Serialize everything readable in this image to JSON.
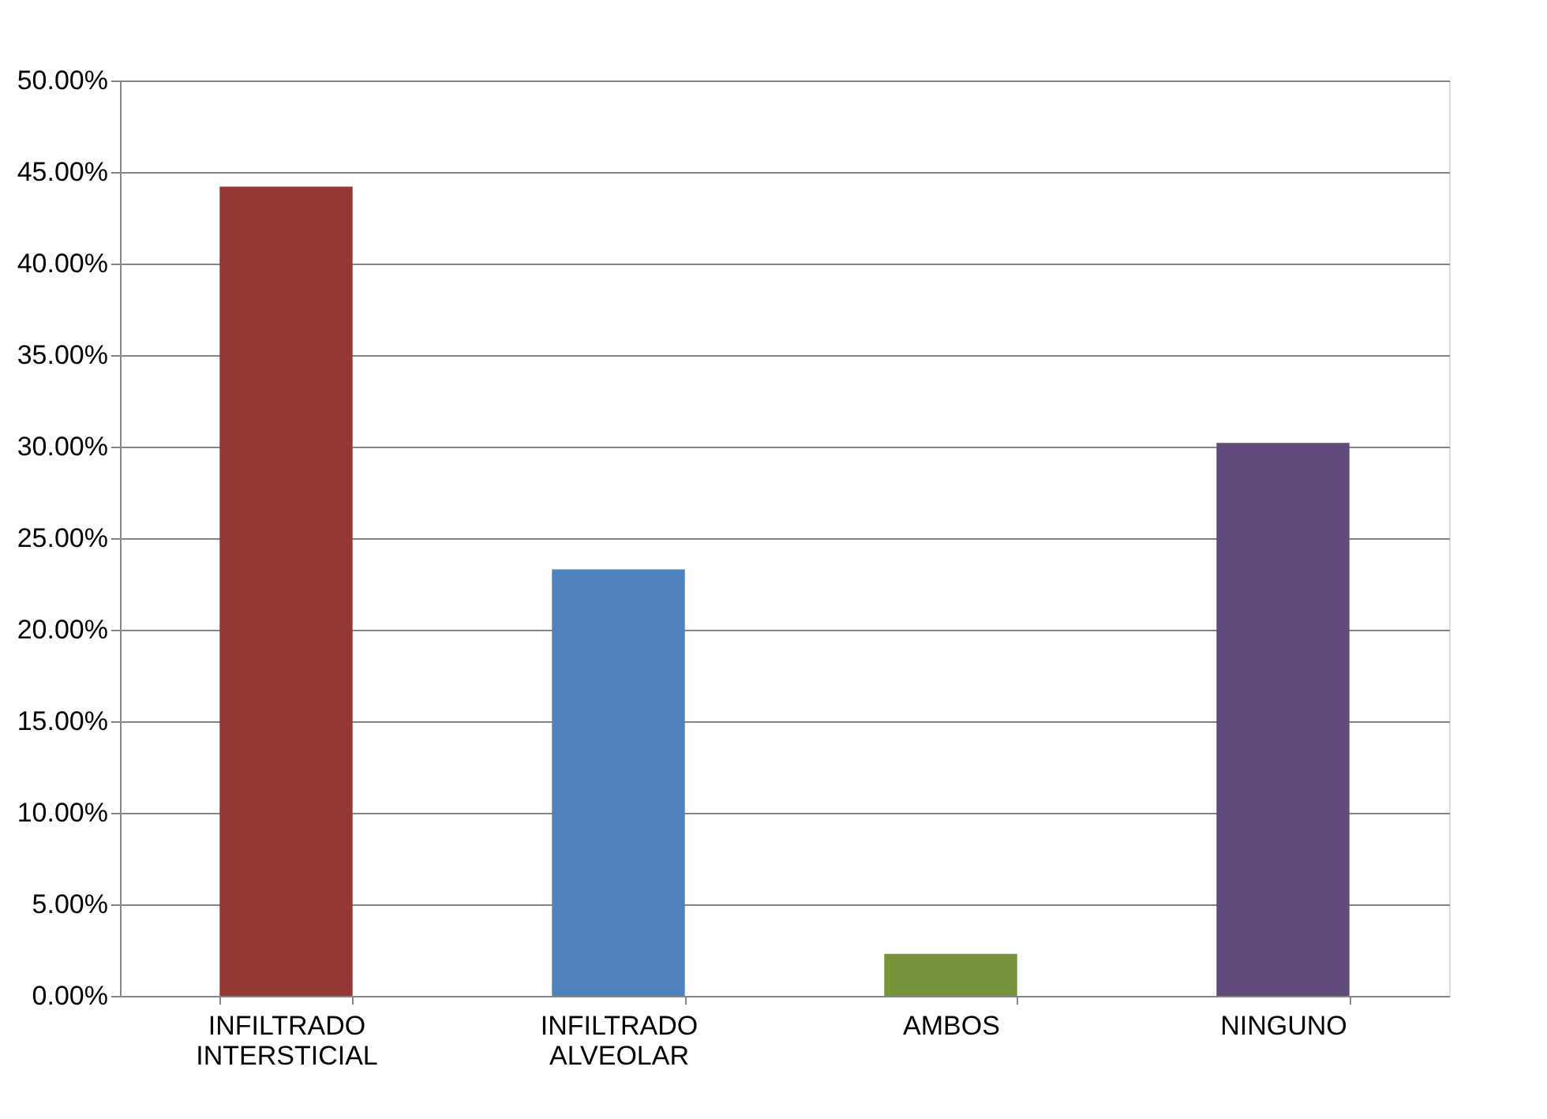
{
  "chart_data": {
    "type": "bar",
    "categories": [
      "INFILTRADO INTERSTICIAL",
      "INFILTRADO ALVEOLAR",
      "AMBOS",
      "NINGUNO"
    ],
    "values": [
      44.2,
      23.3,
      2.3,
      30.2
    ],
    "colors": [
      "#953735",
      "#4f81bd",
      "#77933c",
      "#604a7b"
    ],
    "ylim": [
      0,
      50
    ],
    "yticks": [
      {
        "value": 0,
        "label": "0.00%"
      },
      {
        "value": 5,
        "label": "5.00%"
      },
      {
        "value": 10,
        "label": "10.00%"
      },
      {
        "value": 15,
        "label": "15.00%"
      },
      {
        "value": 20,
        "label": "20.00%"
      },
      {
        "value": 25,
        "label": "25.00%"
      },
      {
        "value": 30,
        "label": "30.00%"
      },
      {
        "value": 35,
        "label": "35.00%"
      },
      {
        "value": 40,
        "label": "40.00%"
      },
      {
        "value": 45,
        "label": "45.00%"
      },
      {
        "value": 50,
        "label": "50.00%"
      }
    ],
    "grid": "y",
    "legend": false
  }
}
